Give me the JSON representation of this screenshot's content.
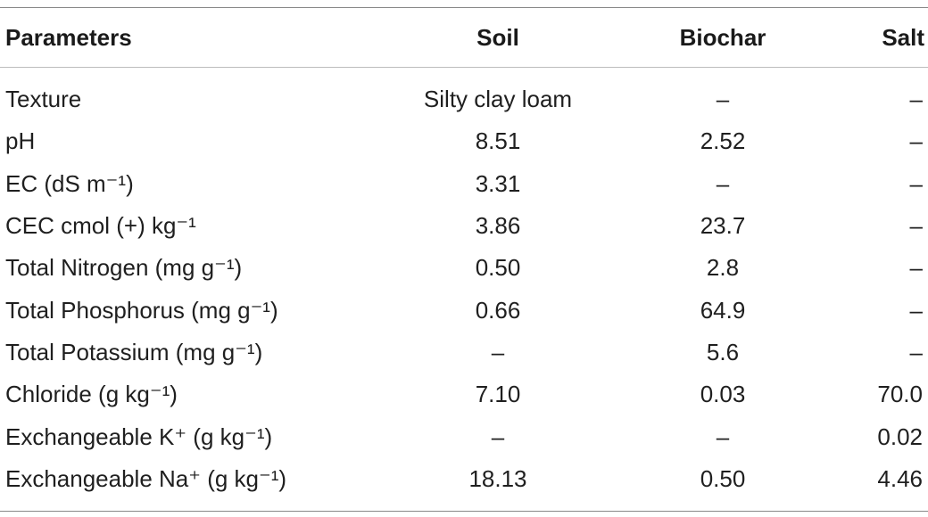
{
  "table": {
    "headers": [
      "Parameters",
      "Soil",
      "Biochar",
      "Salt"
    ],
    "rows": [
      {
        "parameter": "Texture",
        "soil": "Silty clay loam",
        "biochar": "–",
        "salt": "–"
      },
      {
        "parameter": "pH",
        "soil": "8.51",
        "biochar": "2.52",
        "salt": "–"
      },
      {
        "parameter": "EC (dS m⁻¹)",
        "soil": "3.31",
        "biochar": "–",
        "salt": "–"
      },
      {
        "parameter": "CEC cmol (+) kg⁻¹",
        "soil": "3.86",
        "biochar": "23.7",
        "salt": "–"
      },
      {
        "parameter": "Total Nitrogen (mg g⁻¹)",
        "soil": "0.50",
        "biochar": "2.8",
        "salt": "–"
      },
      {
        "parameter": "Total Phosphorus (mg g⁻¹)",
        "soil": "0.66",
        "biochar": "64.9",
        "salt": "–"
      },
      {
        "parameter": "Total Potassium (mg g⁻¹)",
        "soil": "–",
        "biochar": "5.6",
        "salt": "–"
      },
      {
        "parameter": "Chloride (g kg⁻¹)",
        "soil": "7.10",
        "biochar": "0.03",
        "salt": "70.0"
      },
      {
        "parameter": "Exchangeable K⁺ (g kg⁻¹)",
        "soil": "–",
        "biochar": "–",
        "salt": "0.02"
      },
      {
        "parameter": "Exchangeable Na⁺ (g kg⁻¹)",
        "soil": "18.13",
        "biochar": "0.50",
        "salt": "4.46"
      }
    ]
  }
}
